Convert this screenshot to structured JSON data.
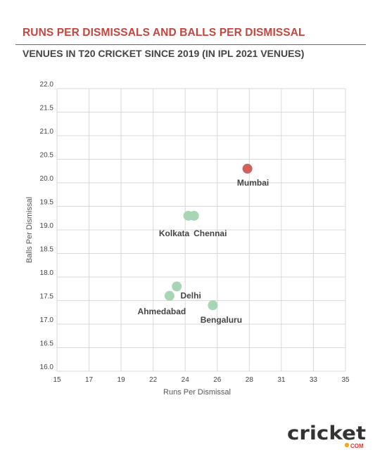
{
  "header": {
    "title": "RUNS PER DISMISSALS AND BALLS PER DISMISSAL",
    "subtitle": "VENUES IN T20 CRICKET SINCE 2019 (IN IPL 2021 VENUES)"
  },
  "chart_data": {
    "type": "scatter",
    "xlabel": "Runs Per Dismissal",
    "ylabel": "Balls Per Dismissal",
    "xlim": [
      15,
      35
    ],
    "ylim": [
      16.0,
      22.0
    ],
    "x_ticks": [
      "15",
      "17",
      "19",
      "22",
      "24",
      "26",
      "28",
      "31",
      "33",
      "35"
    ],
    "y_ticks": [
      "22.0",
      "21.5",
      "21.0",
      "20.5",
      "20.0",
      "19.5",
      "19.0",
      "18.5",
      "18.0",
      "17.5",
      "17.0",
      "16.5",
      "16.0"
    ],
    "grid": true,
    "points": [
      {
        "x": 28.2,
        "y": 20.3,
        "label": "Mumbai",
        "color": "#d0605a"
      },
      {
        "x": 24.1,
        "y": 19.3,
        "label": "Kolkata",
        "color": "#a8d5b4"
      },
      {
        "x": 24.5,
        "y": 19.3,
        "label": "Chennai",
        "color": "#a8d5b4"
      },
      {
        "x": 23.3,
        "y": 17.8,
        "label": "Delhi",
        "color": "#a8d5b4"
      },
      {
        "x": 22.8,
        "y": 17.6,
        "label": "Ahmedabad",
        "color": "#a8d5b4"
      },
      {
        "x": 25.8,
        "y": 17.4,
        "label": "Bengaluru",
        "color": "#a8d5b4"
      }
    ]
  },
  "logo": {
    "text": "cricket",
    "suffix": "COM",
    "brand_color": "#e5312c",
    "accent_color": "#f5a623"
  }
}
